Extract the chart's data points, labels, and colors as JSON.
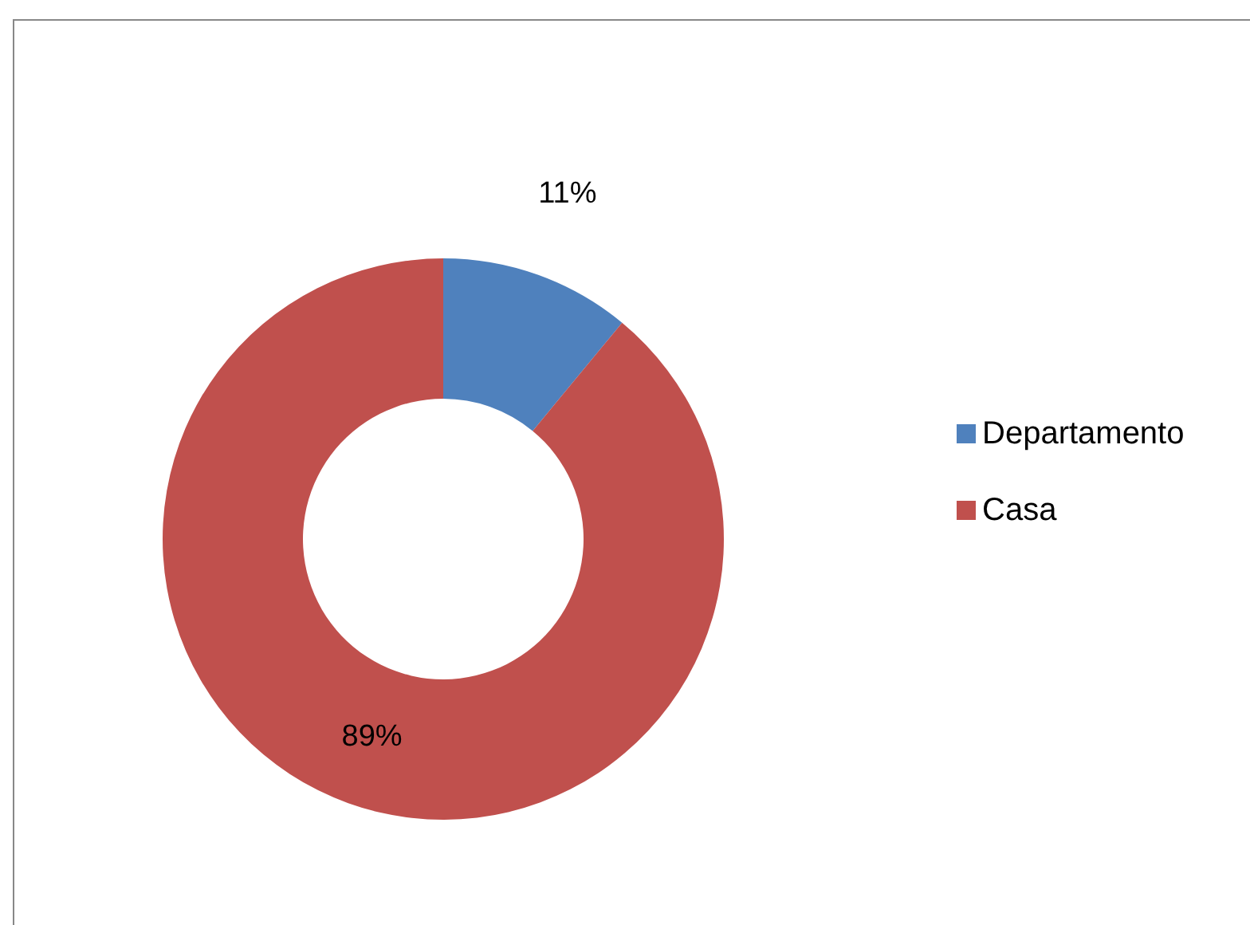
{
  "chart_data": {
    "type": "donut",
    "categories": [
      "Departamento",
      "Casa"
    ],
    "values": [
      11,
      89
    ],
    "colors": [
      "#4f81bd",
      "#c0504d"
    ],
    "value_labels": [
      "11%",
      "89%"
    ],
    "legend": "right"
  }
}
